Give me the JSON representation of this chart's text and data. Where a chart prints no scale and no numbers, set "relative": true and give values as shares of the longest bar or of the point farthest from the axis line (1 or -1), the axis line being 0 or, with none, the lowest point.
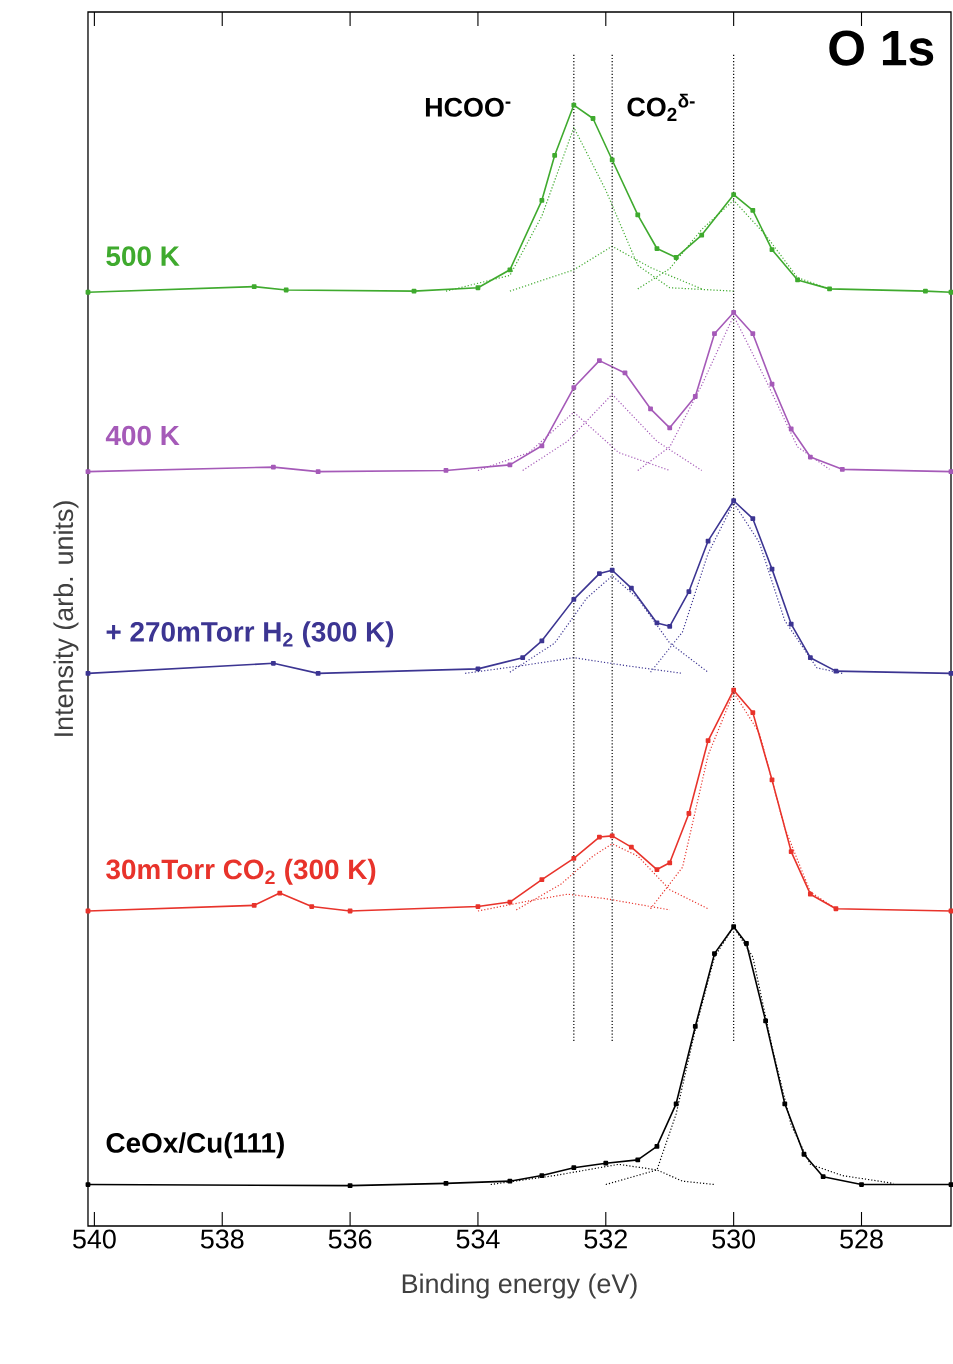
{
  "chart_data": {
    "type": "line",
    "relative": true,
    "xlabel": "Binding energy (eV)",
    "ylabel": "Intensity (arb. units)",
    "xlim": [
      540.1,
      526.6
    ],
    "xticks": [
      540,
      538,
      536,
      534,
      532,
      530,
      528
    ],
    "tick_labels": "x",
    "marker": "square",
    "line_style": "solid",
    "annotations": [
      "O 1s"
    ],
    "ref_lines": [
      {
        "axis": "x",
        "value": 532.5,
        "label": "HCOO$^{-}$",
        "line_style": "dotted"
      },
      {
        "axis": "x",
        "value": 531.9,
        "label": "CO$_{2}$$^{δ-}$",
        "line_style": "dotted"
      },
      {
        "axis": "x",
        "value": 530.0,
        "line_style": "dotted"
      }
    ],
    "series": [
      {
        "name": "500 K",
        "color": "#3faa2e",
        "x": [
          540.1,
          537.5,
          537,
          535,
          534,
          533.5,
          533,
          532.8,
          532.5,
          532.2,
          531.9,
          531.5,
          531.2,
          530.9,
          530.5,
          530.0,
          529.7,
          529.4,
          529.0,
          528.5,
          527,
          526.6
        ],
        "values": [
          0.833,
          0.838,
          0.835,
          0.834,
          0.837,
          0.853,
          0.915,
          0.955,
          1.0,
          0.988,
          0.951,
          0.902,
          0.872,
          0.864,
          0.884,
          0.92,
          0.906,
          0.871,
          0.844,
          0.836,
          0.834,
          0.833
        ]
      },
      {
        "color": "#3faa2e",
        "line_style": "dotted",
        "marker": "none",
        "x": [
          534.5,
          533.5,
          533,
          532.5,
          532,
          531.5,
          531,
          530
        ],
        "values": [
          0.834,
          0.848,
          0.901,
          0.98,
          0.924,
          0.857,
          0.837,
          0.834
        ]
      },
      {
        "color": "#3faa2e",
        "line_style": "dotted",
        "marker": "none",
        "x": [
          533.5,
          532.5,
          531.9,
          531.3,
          530.5
        ],
        "values": [
          0.834,
          0.853,
          0.874,
          0.855,
          0.836
        ]
      },
      {
        "color": "#3faa2e",
        "line_style": "dotted",
        "marker": "none",
        "x": [
          531.5,
          531,
          530.5,
          530.0,
          529.5,
          529,
          528.5
        ],
        "values": [
          0.836,
          0.854,
          0.889,
          0.915,
          0.884,
          0.846,
          0.836
        ]
      },
      {
        "name": "400 K",
        "color": "#a55ab8",
        "x": [
          540.1,
          537.2,
          536.5,
          534.5,
          533.5,
          533.0,
          532.5,
          532.1,
          531.7,
          531.3,
          531.0,
          530.6,
          530.3,
          530.0,
          529.7,
          529.4,
          529.1,
          528.8,
          528.3,
          526.6
        ],
        "values": [
          0.673,
          0.677,
          0.673,
          0.674,
          0.679,
          0.696,
          0.748,
          0.772,
          0.761,
          0.729,
          0.712,
          0.74,
          0.796,
          0.815,
          0.796,
          0.751,
          0.711,
          0.686,
          0.675,
          0.673
        ]
      },
      {
        "color": "#a55ab8",
        "line_style": "dotted",
        "marker": "none",
        "x": [
          534,
          533.2,
          532.5,
          531.8,
          531
        ],
        "values": [
          0.674,
          0.69,
          0.726,
          0.69,
          0.674
        ]
      },
      {
        "color": "#a55ab8",
        "line_style": "dotted",
        "marker": "none",
        "x": [
          533.3,
          532.6,
          531.9,
          531.2,
          530.5
        ],
        "values": [
          0.674,
          0.7,
          0.742,
          0.7,
          0.674
        ]
      },
      {
        "color": "#a55ab8",
        "line_style": "dotted",
        "marker": "none",
        "x": [
          531.5,
          531,
          530.5,
          530,
          529.5,
          529,
          528.5
        ],
        "values": [
          0.674,
          0.695,
          0.75,
          0.812,
          0.755,
          0.695,
          0.675
        ]
      },
      {
        "name": "+ 270mTorr H$_{2}$ (300 K)",
        "color": "#3c3592",
        "x": [
          540.1,
          537.2,
          536.5,
          534,
          533.3,
          533.0,
          532.5,
          532.1,
          531.9,
          531.6,
          531.2,
          531.0,
          530.7,
          530.4,
          530.0,
          529.7,
          529.4,
          529.1,
          528.8,
          528.4,
          526.6
        ],
        "values": [
          0.493,
          0.502,
          0.493,
          0.497,
          0.507,
          0.522,
          0.559,
          0.582,
          0.585,
          0.569,
          0.538,
          0.535,
          0.566,
          0.611,
          0.647,
          0.631,
          0.586,
          0.537,
          0.507,
          0.495,
          0.493
        ]
      },
      {
        "color": "#3c3592",
        "line_style": "dotted",
        "marker": "none",
        "x": [
          534.2,
          533.3,
          532.5,
          531.7,
          530.8
        ],
        "values": [
          0.493,
          0.5,
          0.507,
          0.5,
          0.493
        ]
      },
      {
        "color": "#3c3592",
        "line_style": "dotted",
        "marker": "none",
        "x": [
          533.5,
          532.8,
          532.3,
          531.9,
          531.5,
          531,
          530.4
        ],
        "values": [
          0.494,
          0.52,
          0.56,
          0.58,
          0.56,
          0.52,
          0.494
        ]
      },
      {
        "color": "#3c3592",
        "line_style": "dotted",
        "marker": "none",
        "x": [
          531.3,
          530.8,
          530.4,
          530,
          529.6,
          529.2,
          528.7,
          528.3
        ],
        "values": [
          0.494,
          0.53,
          0.6,
          0.645,
          0.61,
          0.54,
          0.498,
          0.493
        ]
      },
      {
        "name": "30mTorr CO$_{2}$ (300 K)",
        "color": "#e8332b",
        "x": [
          540.1,
          537.5,
          537.1,
          536.6,
          536,
          534,
          533.5,
          533.0,
          532.5,
          532.1,
          531.9,
          531.6,
          531.2,
          531.0,
          530.7,
          530.4,
          530.0,
          529.7,
          529.4,
          529.1,
          528.8,
          528.4,
          526.6
        ],
        "values": [
          0.281,
          0.286,
          0.297,
          0.285,
          0.281,
          0.285,
          0.289,
          0.309,
          0.328,
          0.347,
          0.348,
          0.338,
          0.318,
          0.324,
          0.368,
          0.433,
          0.478,
          0.458,
          0.398,
          0.334,
          0.296,
          0.283,
          0.281
        ]
      },
      {
        "color": "#e8332b",
        "line_style": "dotted",
        "marker": "none",
        "x": [
          534,
          533.2,
          532.6,
          532,
          531
        ],
        "values": [
          0.281,
          0.29,
          0.296,
          0.292,
          0.282
        ]
      },
      {
        "color": "#e8332b",
        "line_style": "dotted",
        "marker": "none",
        "x": [
          533.4,
          532.7,
          532.2,
          531.9,
          531.5,
          531,
          530.4
        ],
        "values": [
          0.282,
          0.305,
          0.33,
          0.341,
          0.33,
          0.3,
          0.283
        ]
      },
      {
        "color": "#e8332b",
        "line_style": "dotted",
        "marker": "none",
        "x": [
          531.3,
          530.8,
          530.4,
          530,
          529.6,
          529.2,
          528.8,
          528.4
        ],
        "values": [
          0.283,
          0.32,
          0.42,
          0.476,
          0.44,
          0.355,
          0.298,
          0.283
        ]
      },
      {
        "name": "CeOx/Cu(111)",
        "color": "#000000",
        "x": [
          540.1,
          536,
          534.5,
          533.5,
          533.0,
          532.5,
          532.0,
          531.5,
          531.2,
          530.9,
          530.6,
          530.3,
          530.0,
          529.8,
          529.5,
          529.2,
          528.9,
          528.6,
          528,
          526.6
        ],
        "values": [
          0.037,
          0.036,
          0.038,
          0.04,
          0.045,
          0.052,
          0.056,
          0.059,
          0.071,
          0.109,
          0.178,
          0.243,
          0.267,
          0.252,
          0.183,
          0.109,
          0.064,
          0.044,
          0.037,
          0.037
        ]
      },
      {
        "color": "#000000",
        "line_style": "dotted",
        "marker": "none",
        "x": [
          533.8,
          532.8,
          531.8,
          531.2,
          530.8,
          530.3
        ],
        "values": [
          0.037,
          0.045,
          0.055,
          0.05,
          0.04,
          0.037
        ]
      },
      {
        "color": "#000000",
        "line_style": "dotted",
        "marker": "none",
        "x": [
          532,
          531.2,
          530.9,
          530.6,
          530.3,
          530,
          529.7,
          529.4,
          529.1,
          528.8,
          528.3,
          527.5
        ],
        "values": [
          0.037,
          0.05,
          0.1,
          0.175,
          0.24,
          0.267,
          0.24,
          0.16,
          0.09,
          0.055,
          0.045,
          0.038
        ]
      }
    ]
  }
}
